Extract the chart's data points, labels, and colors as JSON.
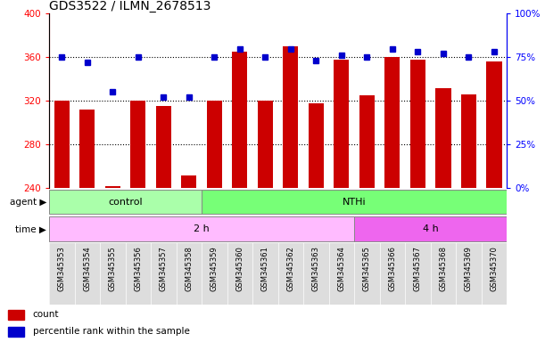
{
  "title": "GDS3522 / ILMN_2678513",
  "samples": [
    "GSM345353",
    "GSM345354",
    "GSM345355",
    "GSM345356",
    "GSM345357",
    "GSM345358",
    "GSM345359",
    "GSM345360",
    "GSM345361",
    "GSM345362",
    "GSM345363",
    "GSM345364",
    "GSM345365",
    "GSM345366",
    "GSM345367",
    "GSM345368",
    "GSM345369",
    "GSM345370"
  ],
  "counts": [
    320,
    312,
    242,
    320,
    315,
    252,
    320,
    365,
    320,
    370,
    318,
    358,
    325,
    360,
    358,
    332,
    326,
    356
  ],
  "percentile_ranks": [
    75,
    72,
    55,
    75,
    52,
    52,
    75,
    80,
    75,
    80,
    73,
    76,
    75,
    80,
    78,
    77,
    75,
    78
  ],
  "ylim_left": [
    240,
    400
  ],
  "ylim_right": [
    0,
    100
  ],
  "yticks_left": [
    240,
    280,
    320,
    360,
    400
  ],
  "yticks_right": [
    0,
    25,
    50,
    75,
    100
  ],
  "yticklabels_right": [
    "0%",
    "25%",
    "50%",
    "75%",
    "100%"
  ],
  "bar_color": "#cc0000",
  "dot_color": "#0000cc",
  "agent_control_n": 6,
  "agent_nthi_n": 12,
  "time_2h_n": 12,
  "time_4h_n": 6,
  "agent_control_label": "control",
  "agent_nthi_label": "NTHi",
  "time_2h_label": "2 h",
  "time_4h_label": "4 h",
  "agent_label": "agent",
  "time_label": "time",
  "control_color": "#aaffaa",
  "nthi_color": "#77ff77",
  "time_2h_color": "#ffbbff",
  "time_4h_color": "#ee66ee",
  "legend_count_label": "count",
  "legend_pct_label": "percentile rank within the sample"
}
